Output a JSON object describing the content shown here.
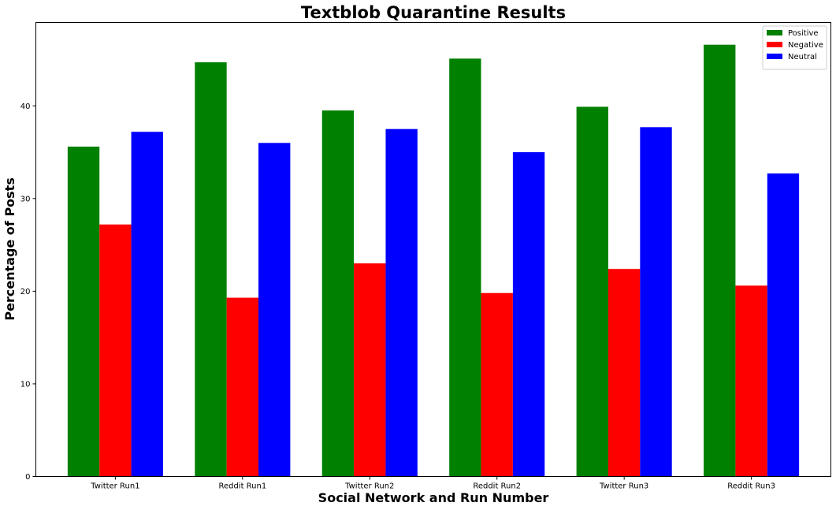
{
  "chart_data": {
    "type": "bar",
    "title": "Textblob Quarantine Results",
    "xlabel": "Social Network and Run Number",
    "ylabel": "Percentage of Posts",
    "categories": [
      "Twitter Run1",
      "Reddit Run1",
      "Twitter Run2",
      "Reddit Run2",
      "Twitter Run3",
      "Reddit Run3"
    ],
    "series": [
      {
        "name": "Positive",
        "color": "#008000",
        "values": [
          35.6,
          44.7,
          39.5,
          45.1,
          39.9,
          46.6
        ]
      },
      {
        "name": "Negative",
        "color": "#ff0000",
        "values": [
          27.2,
          19.3,
          23.0,
          19.8,
          22.4,
          20.6
        ]
      },
      {
        "name": "Neutral",
        "color": "#0000ff",
        "values": [
          37.2,
          36.0,
          37.5,
          35.0,
          37.7,
          32.7
        ]
      }
    ],
    "ylim": [
      0,
      49
    ],
    "yticks": [
      0,
      10,
      20,
      30,
      40
    ],
    "legend": "top-right",
    "grid": false
  }
}
